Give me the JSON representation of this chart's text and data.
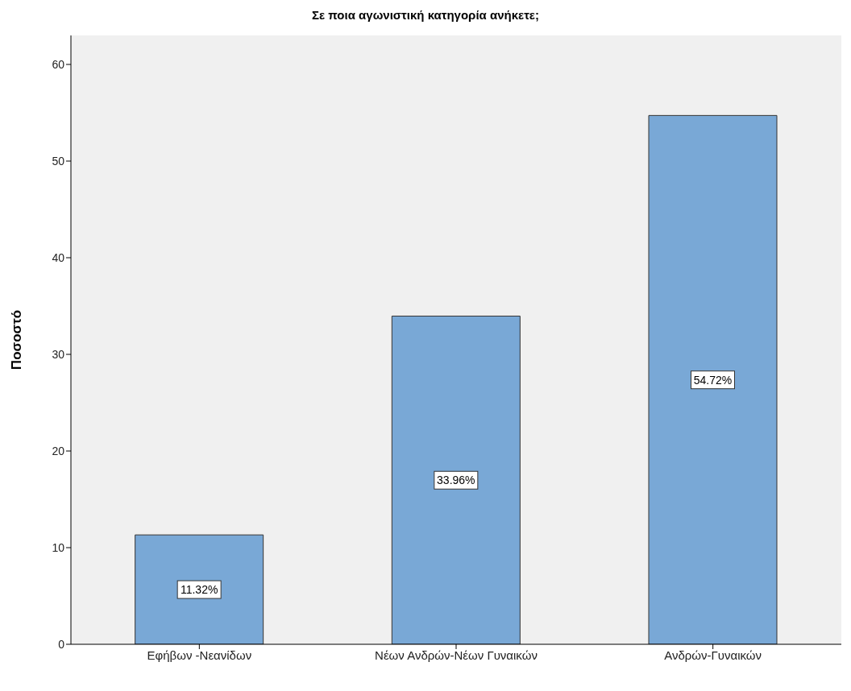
{
  "chart_data": {
    "type": "bar",
    "title": "Σε ποια αγωνιστική κατηγορία ανήκετε;",
    "ylabel": "Ποσοστό",
    "categories": [
      "Εφήβων -Νεανίδων",
      "Νέων Ανδρών-Νέων Γυναικών",
      "Ανδρών-Γυναικών"
    ],
    "values": [
      11.32,
      33.96,
      54.72
    ],
    "value_labels": [
      "11.32%",
      "33.96%",
      "54.72%"
    ],
    "color": "#79a8d6",
    "ylim": [
      0,
      63
    ],
    "yticks": [
      0,
      10,
      20,
      30,
      40,
      50,
      60
    ],
    "grid": false,
    "legend": false
  }
}
